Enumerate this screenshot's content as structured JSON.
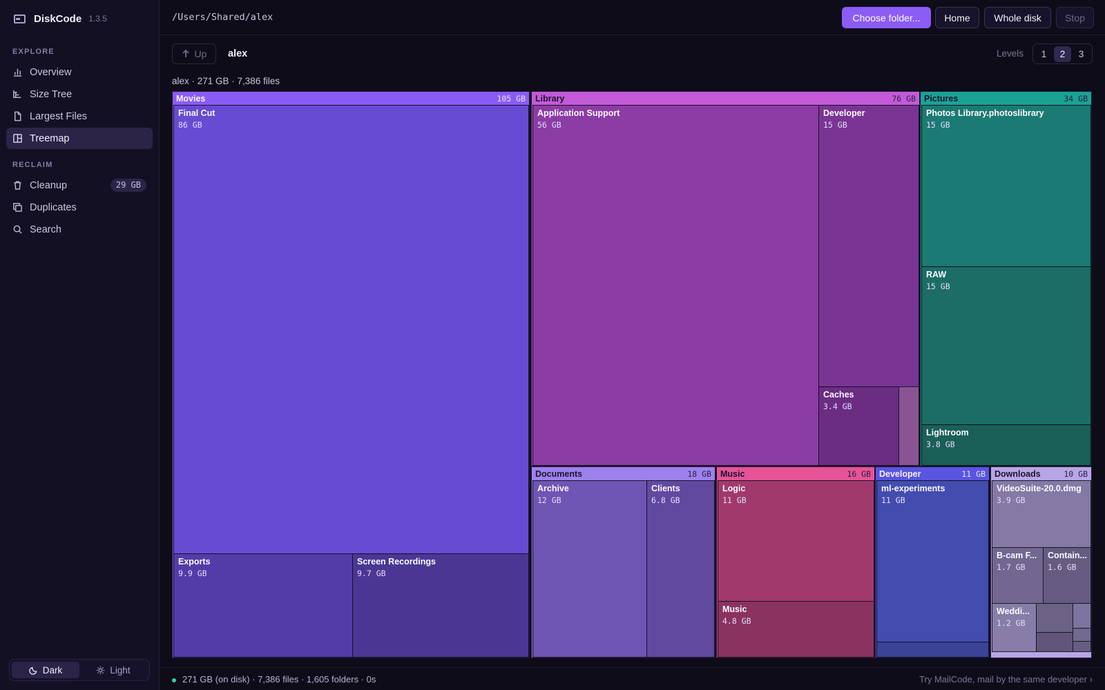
{
  "app": {
    "name": "DiskCode",
    "version": "1.3.5"
  },
  "sidebar": {
    "explore_label": "EXPLORE",
    "reclaim_label": "RECLAIM",
    "items": [
      {
        "label": "Overview",
        "icon": "bar-chart-icon"
      },
      {
        "label": "Size Tree",
        "icon": "tree-icon"
      },
      {
        "label": "Largest Files",
        "icon": "file-icon"
      },
      {
        "label": "Treemap",
        "icon": "treemap-icon",
        "active": true
      },
      {
        "label": "Cleanup",
        "icon": "trash-icon",
        "badge": "29 GB"
      },
      {
        "label": "Duplicates",
        "icon": "copy-icon"
      },
      {
        "label": "Search",
        "icon": "search-icon"
      }
    ],
    "theme": {
      "dark": "Dark",
      "light": "Light",
      "selected": "Dark"
    }
  },
  "topbar": {
    "path": "/Users/Shared/alex",
    "choose_folder": "Choose folder...",
    "home": "Home",
    "whole_disk": "Whole disk",
    "stop": "Stop"
  },
  "navrow": {
    "up": "Up",
    "crumb": "alex",
    "levels_label": "Levels",
    "levels": [
      "1",
      "2",
      "3"
    ],
    "selected_level": "2"
  },
  "summary": "alex · 271 GB · 7,386 files",
  "treemap": {
    "groups": [
      {
        "name": "Movies",
        "size": "105 GB",
        "header_color": "#8a5cf5",
        "children": [
          {
            "name": "Final Cut",
            "size": "86 GB",
            "color": "#674bd3"
          },
          {
            "name": "Exports",
            "size": "9.9 GB",
            "color": "#533ca8"
          },
          {
            "name": "Screen Recordings",
            "size": "9.7 GB",
            "color": "#4a3793"
          }
        ]
      },
      {
        "name": "Library",
        "size": "76 GB",
        "header_color": "#c35ad8",
        "children": [
          {
            "name": "Application Support",
            "size": "56 GB",
            "color": "#8c3ca5"
          },
          {
            "name": "Developer",
            "size": "15 GB",
            "color": "#7a3594"
          },
          {
            "name": "Caches",
            "size": "3.4 GB",
            "color": "#6a2d82"
          },
          {
            "name": "",
            "size": "",
            "color": "#8a5494"
          }
        ]
      },
      {
        "name": "Pictures",
        "size": "34 GB",
        "header_color": "#1aa295",
        "children": [
          {
            "name": "Photos Library.photoslibrary",
            "size": "15 GB",
            "color": "#1b7a72"
          },
          {
            "name": "RAW",
            "size": "15 GB",
            "color": "#1b6d66"
          },
          {
            "name": "Lightroom",
            "size": "3.8 GB",
            "color": "#1a5f58"
          }
        ]
      },
      {
        "name": "Documents",
        "size": "18 GB",
        "header_color": "#9d82ee",
        "children": [
          {
            "name": "Archive",
            "size": "12 GB",
            "color": "#6f55b4"
          },
          {
            "name": "Clients",
            "size": "6.8 GB",
            "color": "#5f4aa0"
          }
        ]
      },
      {
        "name": "Music",
        "size": "16 GB",
        "header_color": "#e55497",
        "children": [
          {
            "name": "Logic",
            "size": "11 GB",
            "color": "#a03a6c"
          },
          {
            "name": "Music",
            "size": "4.8 GB",
            "color": "#8a3360"
          }
        ]
      },
      {
        "name": "Developer",
        "size": "11 GB",
        "header_color": "#5a55e0",
        "children": [
          {
            "name": "ml-experiments",
            "size": "11 GB",
            "color": "#434caf"
          },
          {
            "name": "",
            "size": "",
            "color": "#3b4396"
          }
        ]
      },
      {
        "name": "Downloads",
        "size": "10 GB",
        "header_color": "#b7a6e6",
        "children": [
          {
            "name": "VideoSuite-20.0.dmg",
            "size": "3.9 GB",
            "color": "#857aa6"
          },
          {
            "name": "B-cam F...",
            "size": "1.7 GB",
            "color": "#726790"
          },
          {
            "name": "Contain...",
            "size": "1.6 GB",
            "color": "#665c82"
          },
          {
            "name": "Weddi...",
            "size": "1.2 GB",
            "color": "#877da8"
          },
          {
            "name": "",
            "size": "",
            "color": "#6b6286"
          },
          {
            "name": "",
            "size": "",
            "color": "#7e74a0"
          },
          {
            "name": "",
            "size": "",
            "color": "#5f5679"
          },
          {
            "name": "",
            "size": "",
            "color": "#736a92"
          },
          {
            "name": "",
            "size": "",
            "color": "#675e85"
          }
        ]
      }
    ]
  },
  "status": {
    "text": "271 GB (on disk) · 7,386 files · 1,605 folders · 0s",
    "promo": "Try MailCode, mail by the same developer ›"
  }
}
